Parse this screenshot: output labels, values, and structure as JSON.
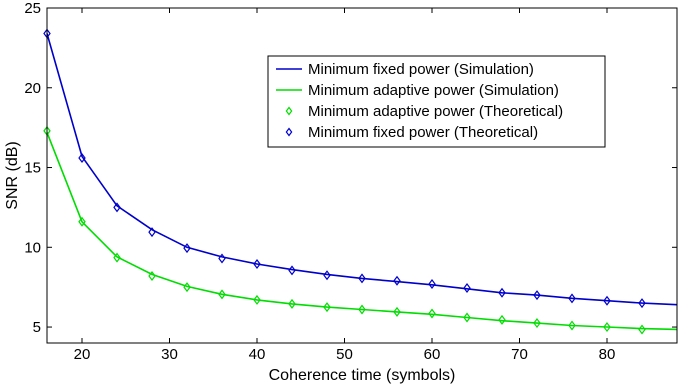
{
  "chart_data": {
    "type": "line",
    "xlabel": "Coherence time (symbols)",
    "ylabel": "SNR (dB)",
    "xlim": [
      16,
      88
    ],
    "ylim": [
      4,
      25
    ],
    "xticks": [
      20,
      30,
      40,
      50,
      60,
      70,
      80
    ],
    "yticks": [
      5,
      10,
      15,
      20,
      25
    ],
    "grid": false,
    "legend_position": "top-right",
    "colors": {
      "fixed": "#0000cc",
      "adaptive": "#00dd00"
    },
    "series": [
      {
        "name": "Minimum fixed power (Simulation)",
        "style": "line",
        "color": "#0000cc",
        "x": [
          16,
          20,
          24,
          28,
          32,
          36,
          40,
          44,
          48,
          52,
          56,
          60,
          64,
          68,
          72,
          76,
          80,
          84,
          88
        ],
        "y": [
          23.4,
          15.7,
          12.6,
          11.1,
          10.0,
          9.4,
          8.95,
          8.6,
          8.3,
          8.05,
          7.85,
          7.65,
          7.4,
          7.15,
          7.0,
          6.8,
          6.65,
          6.5,
          6.4
        ]
      },
      {
        "name": "Minimum adaptive power (Simulation)",
        "style": "line",
        "color": "#00dd00",
        "x": [
          16,
          20,
          24,
          28,
          32,
          36,
          40,
          44,
          48,
          52,
          56,
          60,
          64,
          68,
          72,
          76,
          80,
          84,
          88
        ],
        "y": [
          17.2,
          11.6,
          9.4,
          8.3,
          7.55,
          7.05,
          6.7,
          6.45,
          6.25,
          6.1,
          5.95,
          5.8,
          5.6,
          5.4,
          5.25,
          5.1,
          5.0,
          4.9,
          4.85
        ]
      },
      {
        "name": "Minimum adaptive power (Theoretical)",
        "style": "markers",
        "marker": "diamond",
        "color": "#00dd00",
        "x": [
          16,
          20,
          24,
          28,
          32,
          36,
          40,
          44,
          48,
          52,
          56,
          60,
          64,
          68,
          72,
          76,
          80,
          84
        ],
        "y": [
          17.3,
          11.6,
          9.35,
          8.2,
          7.5,
          7.05,
          6.7,
          6.45,
          6.25,
          6.1,
          5.95,
          5.85,
          5.6,
          5.45,
          5.25,
          5.1,
          5.0,
          4.85
        ]
      },
      {
        "name": "Minimum fixed power (Theoretical)",
        "style": "markers",
        "marker": "diamond",
        "color": "#0000cc",
        "x": [
          16,
          20,
          24,
          28,
          32,
          36,
          40,
          44,
          48,
          52,
          56,
          60,
          64,
          68,
          72,
          76,
          80,
          84
        ],
        "y": [
          23.4,
          15.6,
          12.5,
          10.95,
          9.95,
          9.3,
          8.95,
          8.55,
          8.25,
          8.05,
          7.9,
          7.7,
          7.45,
          7.15,
          7.0,
          6.8,
          6.65,
          6.5
        ]
      }
    ]
  }
}
